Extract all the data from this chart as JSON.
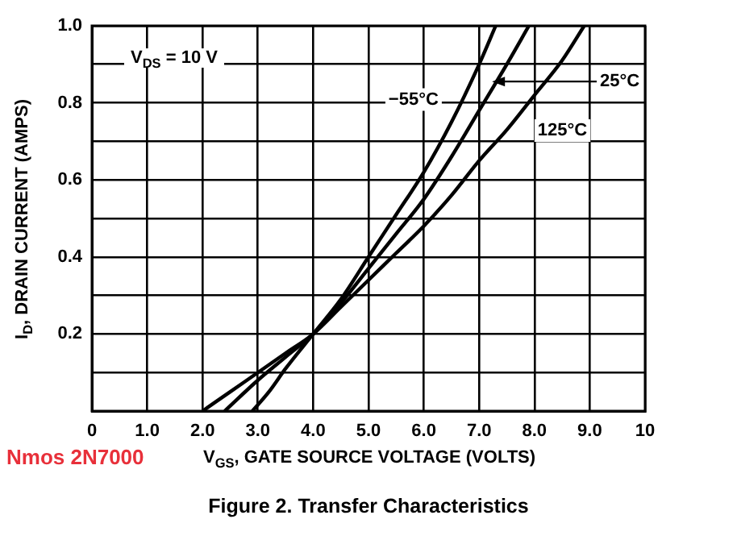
{
  "chart_data": {
    "type": "line",
    "title": "Figure 2. Transfer Characteristics",
    "xlabel": "V$_{GS}$, GATE SOURCE VOLTAGE (VOLTS)",
    "ylabel": "I$_{D}$, DRAIN CURRENT (AMPS)",
    "annotations": [
      "V$_{DS}$ = 10 V",
      "Nmos 2N7000"
    ],
    "series": [
      {
        "name": "−55°C",
        "color": "#000000",
        "x": [
          2.9,
          3.2,
          3.5,
          4.0,
          4.5,
          5.0,
          5.5,
          6.0,
          6.5,
          7.0,
          7.3
        ],
        "values": [
          0,
          0.05,
          0.11,
          0.2,
          0.29,
          0.4,
          0.51,
          0.62,
          0.75,
          0.9,
          1.0
        ]
      },
      {
        "name": "25°C",
        "color": "#000000",
        "x": [
          2.4,
          3.0,
          3.5,
          4.0,
          4.5,
          5.0,
          5.5,
          6.0,
          6.5,
          7.0,
          7.5,
          7.9
        ],
        "values": [
          0,
          0.08,
          0.14,
          0.2,
          0.28,
          0.37,
          0.46,
          0.55,
          0.66,
          0.78,
          0.9,
          1.0
        ]
      },
      {
        "name": "125°C",
        "color": "#000000",
        "x": [
          2.0,
          2.5,
          3.0,
          3.5,
          4.0,
          4.5,
          5.0,
          5.5,
          6.0,
          6.5,
          7.0,
          7.5,
          8.0,
          8.5,
          8.9
        ],
        "values": [
          0,
          0.05,
          0.1,
          0.15,
          0.2,
          0.27,
          0.34,
          0.41,
          0.48,
          0.56,
          0.65,
          0.73,
          0.82,
          0.91,
          1.0
        ]
      }
    ],
    "xlim": [
      0,
      10
    ],
    "xticks": [
      0,
      {
        "value": 1,
        "label": "1.0"
      },
      {
        "value": 2,
        "label": "2.0"
      },
      {
        "value": 3,
        "label": "3.0"
      },
      {
        "value": 4,
        "label": "4.0"
      },
      {
        "value": 5,
        "label": "5.0"
      },
      {
        "value": 6,
        "label": "6.0"
      },
      {
        "value": 7,
        "label": "7.0"
      },
      {
        "value": 8,
        "label": "8.0"
      },
      {
        "value": 9,
        "label": "9.0"
      },
      10
    ],
    "ylim": [
      0,
      1
    ],
    "yticks": [
      {
        "value": 0,
        "label": null
      },
      {
        "value": 0.1,
        "label": null
      },
      0.2,
      {
        "value": 0.3,
        "label": null
      },
      0.4,
      {
        "value": 0.5,
        "label": null
      },
      0.6,
      {
        "value": 0.7,
        "label": null
      },
      0.8,
      {
        "value": 0.9,
        "label": null
      },
      {
        "value": 1,
        "label": "1.0"
      }
    ],
    "grid": true,
    "legend": false,
    "marker": "none",
    "line_style": "solid"
  }
}
